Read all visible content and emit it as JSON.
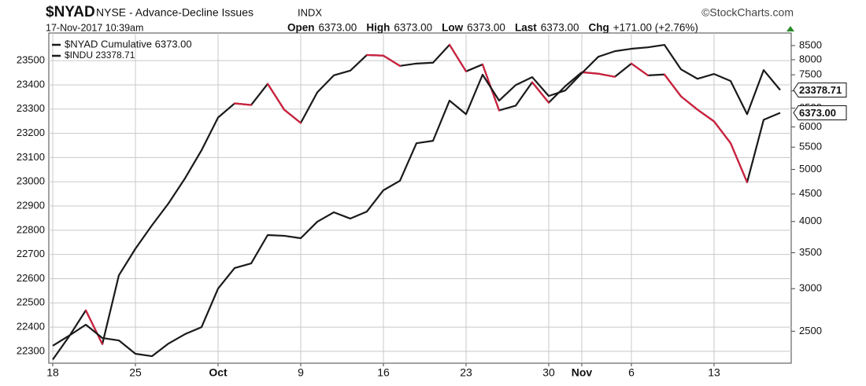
{
  "header": {
    "symbol": "$NYAD",
    "name": "NYSE - Advance-Decline Issues",
    "exchange": "INDX",
    "source": "©StockCharts.com",
    "date": "17-Nov-2017 10:39am",
    "quote": [
      {
        "label": "Open",
        "value": "6373.00"
      },
      {
        "label": "High",
        "value": "6373.00"
      },
      {
        "label": "Low",
        "value": "6373.00"
      },
      {
        "label": "Last",
        "value": "6373.00"
      },
      {
        "label": "Chg",
        "value": "+171.00 (+2.76%)"
      }
    ]
  },
  "chart_data": {
    "type": "line",
    "categories": [
      "18",
      null,
      null,
      null,
      null,
      "25",
      null,
      null,
      null,
      null,
      "Oct",
      null,
      null,
      null,
      null,
      "9",
      null,
      null,
      null,
      null,
      "16",
      null,
      null,
      null,
      null,
      "23",
      null,
      null,
      null,
      null,
      "30",
      null,
      "Nov",
      null,
      null,
      "6",
      null,
      null,
      null,
      null,
      "13",
      null,
      null,
      null,
      null
    ],
    "ylim": [
      22251,
      23614
    ],
    "yticks": [
      22300,
      22400,
      22500,
      22600,
      22700,
      22800,
      22900,
      23000,
      23100,
      23200,
      23300,
      23400,
      23500
    ],
    "y2lim": [
      2180,
      8970
    ],
    "y2_log": true,
    "y2ticks": [
      2500,
      3000,
      3500,
      4000,
      4500,
      5000,
      5500,
      6000,
      6500,
      7000,
      7500,
      8000,
      8500
    ],
    "grid": true,
    "down_color": "#d0213e",
    "series": [
      {
        "name": "$NYAD Cumulative 6373.00",
        "color": "#1a1a1a",
        "axis": "y2",
        "values": [
          2214,
          2448,
          2734,
          2366,
          3177,
          3560,
          3935,
          4323,
          4813,
          5428,
          6245,
          6635,
          6589,
          7215,
          6459,
          6102,
          6956,
          7482,
          7637,
          8165,
          8142,
          7791,
          7870,
          7900,
          8529,
          7610,
          7841,
          6439,
          6569,
          7265,
          6656,
          7143,
          7583,
          7536,
          7437,
          7870,
          7482,
          7509,
          6838,
          6459,
          6142,
          5596,
          4733,
          6186,
          6373
        ],
        "value_labels": [
          null,
          null,
          null,
          null,
          null,
          null,
          null,
          null,
          null,
          null,
          null,
          null,
          null,
          null,
          null,
          null,
          null,
          null,
          null,
          null,
          null,
          null,
          null,
          null,
          null,
          null,
          null,
          null,
          null,
          null,
          null,
          null,
          null,
          null,
          null,
          null,
          null,
          null,
          null,
          null,
          null,
          null,
          null,
          null,
          "6373.00"
        ]
      },
      {
        "name": "$INDU 23378.71",
        "color": "#1a1a1a",
        "values": [
          22323,
          22365,
          22410,
          22355,
          22345,
          22290,
          22280,
          22332,
          22371,
          22400,
          22559,
          22644,
          22663,
          22780,
          22777,
          22767,
          22835,
          22874,
          22848,
          22877,
          22965,
          23004,
          23159,
          23169,
          23335,
          23279,
          23442,
          23335,
          23399,
          23432,
          23354,
          23377,
          23448,
          23516,
          23539,
          23549,
          23555,
          23565,
          23464,
          23425,
          23445,
          23416,
          23279,
          23461,
          23378.71
        ],
        "value_labels": [
          null,
          null,
          null,
          null,
          null,
          null,
          null,
          null,
          null,
          null,
          null,
          null,
          null,
          null,
          null,
          null,
          null,
          null,
          null,
          null,
          null,
          null,
          null,
          null,
          null,
          null,
          null,
          null,
          null,
          null,
          null,
          null,
          null,
          null,
          null,
          null,
          null,
          null,
          null,
          null,
          null,
          null,
          null,
          null,
          "23378.71"
        ]
      }
    ]
  }
}
